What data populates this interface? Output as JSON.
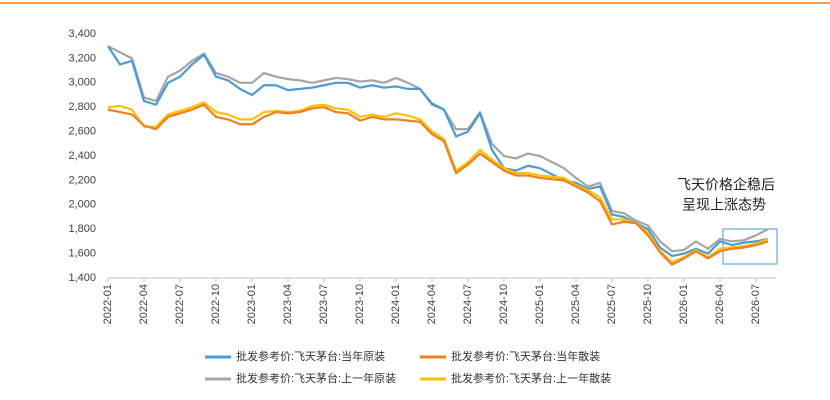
{
  "chart_data": {
    "type": "line",
    "annotations": [
      "飞天价格企稳后",
      "呈现上涨态势"
    ],
    "categories": [
      "2022-01",
      null,
      null,
      "2022-04",
      null,
      null,
      "2022-07",
      null,
      null,
      "2022-10",
      null,
      null,
      "2023-01",
      null,
      null,
      "2023-04",
      null,
      null,
      "2023-07",
      null,
      null,
      "2023-10",
      null,
      null,
      "2024-01",
      null,
      null,
      "2024-04",
      null,
      null,
      "2024-07",
      null,
      null,
      "2024-10",
      null,
      null,
      "2025-01",
      null,
      null,
      "2025-04",
      null,
      null,
      "2025-07",
      null,
      null,
      "2025-10",
      null,
      null,
      "2026-01",
      null,
      null,
      "2026-04",
      null,
      null,
      "2026-07",
      null
    ],
    "series": [
      {
        "name": "批发参考价:飞天茅台:当年原装",
        "color": "#4a9bd6",
        "values": [
          3300,
          3150,
          3180,
          2850,
          2820,
          3000,
          3050,
          3150,
          3230,
          3050,
          3020,
          2950,
          2900,
          2980,
          2980,
          2940,
          2950,
          2960,
          2980,
          3000,
          3000,
          2960,
          2980,
          2960,
          2970,
          2950,
          2950,
          2830,
          2780,
          2560,
          2600,
          2750,
          2450,
          2300,
          2280,
          2320,
          2300,
          2250,
          2200,
          2180,
          2130,
          2150,
          1920,
          1900,
          1850,
          1800,
          1650,
          1580,
          1600,
          1640,
          1600,
          1700,
          1670,
          1690,
          1700,
          1720
        ]
      },
      {
        "name": "批发参考价:飞天茅台:当年散装",
        "color": "#f07f20",
        "values": [
          2780,
          2760,
          2740,
          2650,
          2620,
          2720,
          2750,
          2780,
          2820,
          2720,
          2700,
          2660,
          2660,
          2720,
          2760,
          2750,
          2760,
          2790,
          2800,
          2760,
          2750,
          2690,
          2720,
          2700,
          2700,
          2690,
          2680,
          2580,
          2520,
          2260,
          2330,
          2420,
          2350,
          2280,
          2240,
          2240,
          2220,
          2210,
          2200,
          2150,
          2100,
          2030,
          1840,
          1860,
          1850,
          1750,
          1610,
          1510,
          1560,
          1620,
          1560,
          1620,
          1640,
          1650,
          1670,
          1700
        ]
      },
      {
        "name": "批发参考价:飞天茅台:上一年原装",
        "color": "#a5a5a5",
        "values": [
          3300,
          3250,
          3200,
          2880,
          2850,
          3050,
          3100,
          3180,
          3240,
          3080,
          3050,
          3000,
          3000,
          3080,
          3050,
          3030,
          3020,
          3000,
          3020,
          3040,
          3030,
          3010,
          3020,
          3000,
          3040,
          3000,
          2950,
          2820,
          2780,
          2620,
          2620,
          2760,
          2500,
          2400,
          2380,
          2420,
          2400,
          2350,
          2300,
          2220,
          2150,
          2180,
          1950,
          1930,
          1870,
          1830,
          1700,
          1620,
          1630,
          1700,
          1640,
          1720,
          1700,
          1710,
          1750,
          1800
        ]
      },
      {
        "name": "批发参考价:飞天茅台:上一年散装",
        "color": "#ffc000",
        "values": [
          2800,
          2810,
          2780,
          2640,
          2640,
          2740,
          2770,
          2800,
          2840,
          2760,
          2740,
          2700,
          2700,
          2760,
          2770,
          2760,
          2770,
          2810,
          2820,
          2790,
          2780,
          2720,
          2740,
          2720,
          2750,
          2730,
          2700,
          2600,
          2540,
          2280,
          2350,
          2450,
          2370,
          2300,
          2260,
          2260,
          2240,
          2230,
          2220,
          2160,
          2120,
          2060,
          1880,
          1880,
          1850,
          1770,
          1620,
          1530,
          1570,
          1630,
          1570,
          1640,
          1650,
          1660,
          1680,
          1720
        ]
      }
    ],
    "ylim": [
      1400,
      3400
    ],
    "yticks": [
      {
        "value": 1400,
        "label": "1,400"
      },
      {
        "value": 1600,
        "label": "1,600"
      },
      {
        "value": 1800,
        "label": "1,800"
      },
      {
        "value": 2000,
        "label": "2,000"
      },
      {
        "value": 2200,
        "label": "2,200"
      },
      {
        "value": 2400,
        "label": "2,400"
      },
      {
        "value": 2600,
        "label": "2,600"
      },
      {
        "value": 2800,
        "label": "2,800"
      },
      {
        "value": 3000,
        "label": "3,000"
      },
      {
        "value": 3200,
        "label": "3,200"
      },
      {
        "value": 3400,
        "label": "3,400"
      }
    ],
    "grid": false
  }
}
